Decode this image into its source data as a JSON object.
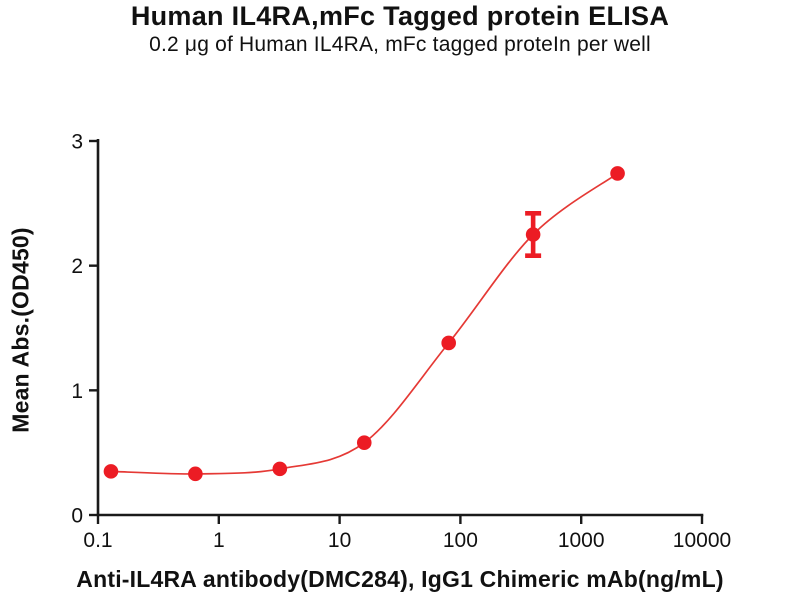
{
  "page": {
    "background": "#ffffff"
  },
  "header": {
    "title": "Human IL4RA,mFc Tagged protein ELISA",
    "subtitle": "0.2 μg of Human IL4RA, mFc tagged proteIn per well"
  },
  "chart_data": {
    "type": "scatter",
    "subtype": "sigmoid-dose-response",
    "x": [
      0.128,
      0.64,
      3.2,
      16,
      80,
      400,
      2000
    ],
    "y": [
      0.35,
      0.33,
      0.37,
      0.58,
      1.38,
      2.25,
      2.74
    ],
    "error_bars": [
      {
        "x": 400,
        "y": 2.25,
        "err": 0.17
      }
    ],
    "title": "Human IL4RA,mFc Tagged protein ELISA",
    "subtitle": "0.2 μg of Human IL4RA, mFc tagged proteIn per well",
    "xlabel": "Anti-IL4RA antibody(DMC284), IgG1 Chimeric mAb(ng/mL)",
    "ylabel": "Mean Abs.(OD450)",
    "x_scale": "log",
    "xlim": [
      0.1,
      10000
    ],
    "ylim": [
      0,
      3
    ],
    "x_ticks": [
      "0.1",
      "1",
      "10",
      "100",
      "1000",
      "10000"
    ],
    "y_ticks": [
      "0",
      "1",
      "2",
      "3"
    ],
    "grid": false,
    "legend": false,
    "point_color": "#ec1c24",
    "line_color": "#e53935",
    "axis_color": "#1a1a1a"
  }
}
